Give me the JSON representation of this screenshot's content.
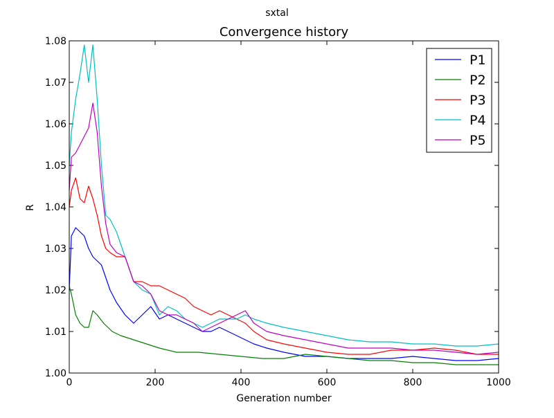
{
  "figure": {
    "suptitle": "sxtal"
  },
  "chart_data": {
    "type": "line",
    "title": "Convergence history",
    "xlabel": "Generation number",
    "ylabel": "R",
    "xlim": [
      0,
      1000
    ],
    "ylim": [
      1.0,
      1.08
    ],
    "xticks": [
      0,
      200,
      400,
      600,
      800,
      1000
    ],
    "xtick_labels": [
      "0",
      "200",
      "400",
      "600",
      "800",
      "1000"
    ],
    "yticks": [
      1.0,
      1.01,
      1.02,
      1.03,
      1.04,
      1.05,
      1.06,
      1.07,
      1.08
    ],
    "ytick_labels": [
      "1.00",
      "1.01",
      "1.02",
      "1.03",
      "1.04",
      "1.05",
      "1.06",
      "1.07",
      "1.08"
    ],
    "grid": false,
    "legend_position": "top-right",
    "series": [
      {
        "name": "P1",
        "color": "#0000ff",
        "x": [
          0,
          5,
          15,
          25,
          35,
          45,
          55,
          65,
          75,
          85,
          95,
          110,
          130,
          150,
          170,
          190,
          210,
          230,
          250,
          270,
          290,
          310,
          330,
          350,
          370,
          390,
          410,
          430,
          460,
          500,
          550,
          600,
          650,
          700,
          750,
          800,
          850,
          900,
          950,
          1000
        ],
        "y": [
          1.02,
          1.033,
          1.035,
          1.034,
          1.033,
          1.03,
          1.028,
          1.027,
          1.026,
          1.023,
          1.02,
          1.017,
          1.014,
          1.012,
          1.014,
          1.016,
          1.013,
          1.014,
          1.013,
          1.012,
          1.011,
          1.01,
          1.01,
          1.011,
          1.01,
          1.009,
          1.008,
          1.007,
          1.006,
          1.005,
          1.004,
          1.004,
          1.0035,
          1.0035,
          1.0035,
          1.004,
          1.0035,
          1.003,
          1.003,
          1.0035
        ]
      },
      {
        "name": "P2",
        "color": "#008000",
        "x": [
          0,
          5,
          15,
          25,
          35,
          45,
          55,
          65,
          80,
          100,
          120,
          150,
          180,
          210,
          250,
          300,
          350,
          400,
          450,
          500,
          550,
          600,
          650,
          700,
          750,
          800,
          850,
          900,
          950,
          1000
        ],
        "y": [
          1.021,
          1.019,
          1.014,
          1.012,
          1.011,
          1.011,
          1.015,
          1.014,
          1.012,
          1.01,
          1.009,
          1.008,
          1.007,
          1.006,
          1.005,
          1.005,
          1.0045,
          1.004,
          1.0035,
          1.0035,
          1.0045,
          1.004,
          1.0035,
          1.003,
          1.003,
          1.0025,
          1.0025,
          1.002,
          1.002,
          1.002
        ]
      },
      {
        "name": "P3",
        "color": "#ff0000",
        "x": [
          0,
          5,
          15,
          25,
          35,
          45,
          55,
          65,
          75,
          85,
          95,
          110,
          130,
          150,
          170,
          190,
          210,
          230,
          250,
          270,
          290,
          310,
          330,
          350,
          370,
          390,
          410,
          430,
          460,
          500,
          550,
          600,
          650,
          700,
          750,
          800,
          850,
          900,
          950,
          1000
        ],
        "y": [
          1.04,
          1.044,
          1.047,
          1.042,
          1.041,
          1.045,
          1.042,
          1.038,
          1.033,
          1.03,
          1.029,
          1.028,
          1.028,
          1.022,
          1.022,
          1.021,
          1.021,
          1.02,
          1.019,
          1.018,
          1.016,
          1.015,
          1.014,
          1.015,
          1.014,
          1.013,
          1.012,
          1.01,
          1.008,
          1.007,
          1.006,
          1.005,
          1.0045,
          1.0045,
          1.0055,
          1.0055,
          1.006,
          1.0055,
          1.0045,
          1.0045
        ]
      },
      {
        "name": "P4",
        "color": "#00bfbf",
        "x": [
          0,
          5,
          15,
          25,
          35,
          45,
          55,
          65,
          75,
          85,
          95,
          110,
          130,
          150,
          170,
          190,
          210,
          230,
          250,
          270,
          290,
          310,
          330,
          350,
          370,
          390,
          410,
          430,
          460,
          500,
          550,
          600,
          650,
          700,
          750,
          800,
          850,
          900,
          950,
          1000
        ],
        "y": [
          1.05,
          1.058,
          1.066,
          1.072,
          1.079,
          1.07,
          1.079,
          1.066,
          1.05,
          1.038,
          1.037,
          1.034,
          1.028,
          1.022,
          1.02,
          1.019,
          1.014,
          1.016,
          1.015,
          1.013,
          1.012,
          1.011,
          1.012,
          1.013,
          1.013,
          1.013,
          1.014,
          1.013,
          1.012,
          1.011,
          1.01,
          1.009,
          1.008,
          1.0075,
          1.0075,
          1.007,
          1.007,
          1.0065,
          1.0065,
          1.007
        ]
      },
      {
        "name": "P5",
        "color": "#bf00bf",
        "x": [
          0,
          5,
          15,
          25,
          35,
          45,
          55,
          65,
          75,
          85,
          95,
          110,
          130,
          150,
          170,
          190,
          210,
          230,
          250,
          270,
          290,
          310,
          330,
          350,
          370,
          390,
          410,
          430,
          460,
          500,
          550,
          600,
          650,
          700,
          750,
          800,
          850,
          900,
          950,
          1000
        ],
        "y": [
          1.044,
          1.052,
          1.053,
          1.055,
          1.057,
          1.059,
          1.065,
          1.058,
          1.045,
          1.036,
          1.031,
          1.029,
          1.028,
          1.022,
          1.021,
          1.019,
          1.015,
          1.014,
          1.014,
          1.013,
          1.012,
          1.01,
          1.011,
          1.012,
          1.013,
          1.014,
          1.015,
          1.012,
          1.01,
          1.009,
          1.008,
          1.007,
          1.006,
          1.006,
          1.006,
          1.0055,
          1.0055,
          1.005,
          1.0045,
          1.005
        ]
      }
    ]
  }
}
